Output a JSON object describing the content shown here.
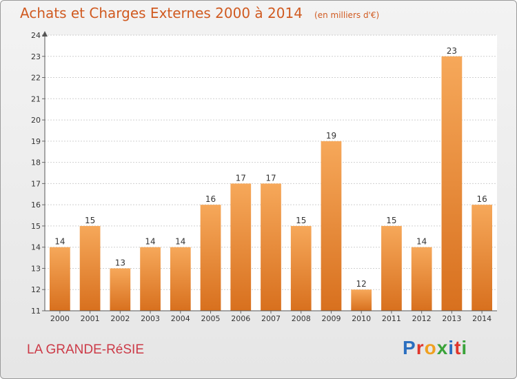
{
  "chart_data": {
    "type": "bar",
    "title": "Achats et Charges Externes 2000 à 2014",
    "subtitle": "(en milliers d'€)",
    "categories": [
      "2000",
      "2001",
      "2002",
      "2003",
      "2004",
      "2005",
      "2006",
      "2007",
      "2008",
      "2009",
      "2010",
      "2011",
      "2012",
      "2013",
      "2014"
    ],
    "values": [
      14,
      15,
      13,
      14,
      14,
      16,
      17,
      17,
      15,
      19,
      12,
      15,
      14,
      23,
      16
    ],
    "ylim": [
      11,
      24
    ],
    "yticks": [
      11,
      12,
      13,
      14,
      15,
      16,
      17,
      18,
      19,
      20,
      21,
      22,
      23,
      24
    ],
    "grid": true,
    "bar_color": "#f08a2c",
    "title_color": "#d05a20"
  },
  "footer": {
    "commune": "LA GRANDE-RéSIE",
    "commune_color": "#cc3a47"
  },
  "logo": {
    "text": "Proxiti",
    "colors": [
      "#2b6fc0",
      "#e0362b",
      "#f0a020",
      "#3aa33a",
      "#2b6fc0",
      "#e0362b",
      "#3aa33a"
    ]
  }
}
